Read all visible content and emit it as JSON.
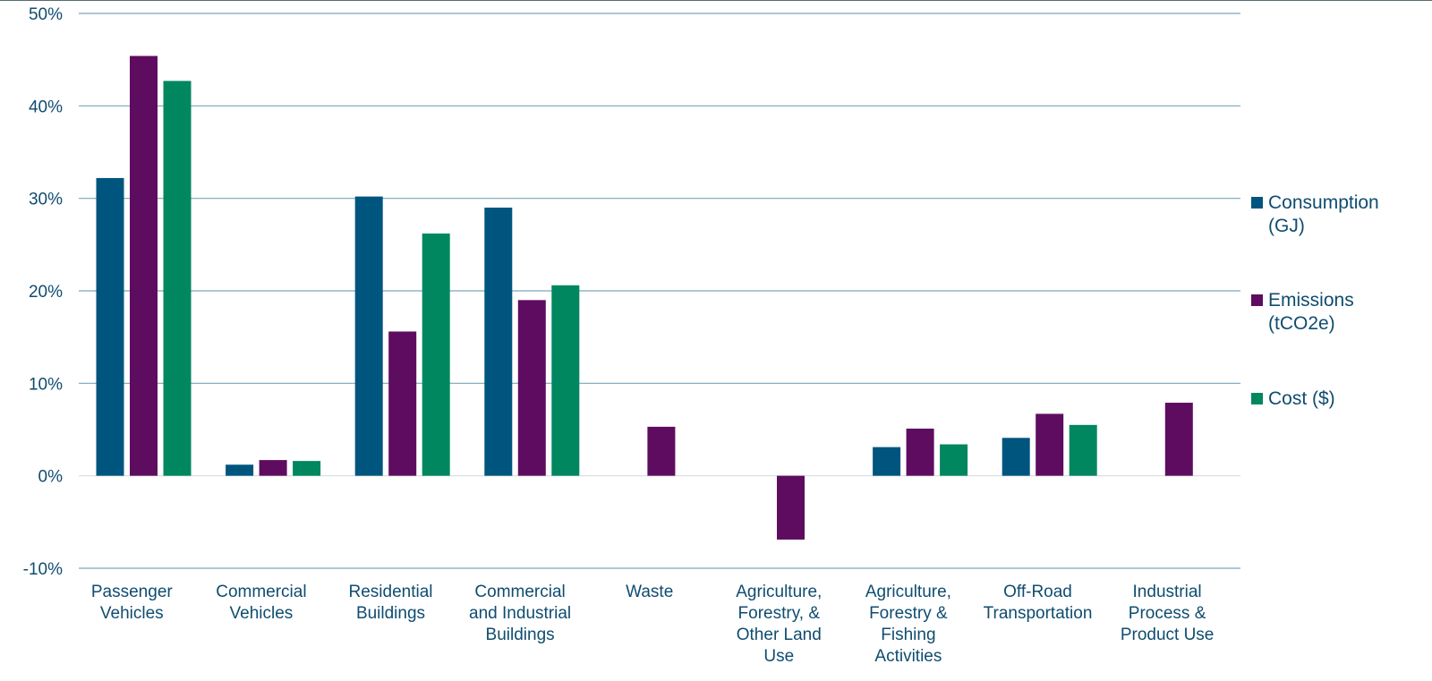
{
  "chart_data": {
    "type": "bar",
    "title": "",
    "xlabel": "",
    "ylabel": "",
    "ylim": [
      -10,
      50
    ],
    "y_ticks": [
      -10,
      0,
      10,
      20,
      30,
      40,
      50
    ],
    "y_tick_labels": [
      "-10%",
      "0%",
      "10%",
      "20%",
      "30%",
      "40%",
      "50%"
    ],
    "grid": true,
    "legend_position": "right",
    "categories": [
      [
        "Passenger",
        "Vehicles"
      ],
      [
        "Commercial",
        "Vehicles"
      ],
      [
        "Residential",
        "Buildings"
      ],
      [
        "Commercial",
        "and Industrial",
        "Buildings"
      ],
      [
        "Waste"
      ],
      [
        "Agriculture,",
        "Forestry, &",
        "Other Land",
        "Use"
      ],
      [
        "Agriculture,",
        "Forestry &",
        "Fishing",
        "Activities"
      ],
      [
        "Off-Road",
        "Transportation"
      ],
      [
        "Industrial",
        "Process &",
        "Product Use"
      ]
    ],
    "series": [
      {
        "name": [
          "Consumption",
          "(GJ)"
        ],
        "color": "#00557f",
        "values": [
          32.2,
          1.2,
          30.2,
          29.0,
          0,
          0,
          3.1,
          4.1,
          0
        ]
      },
      {
        "name": [
          "Emissions",
          "(tCO2e)"
        ],
        "color": "#5e0c60",
        "values": [
          45.4,
          1.7,
          15.6,
          19.0,
          5.3,
          -6.9,
          5.1,
          6.7,
          7.9
        ]
      },
      {
        "name": [
          "Cost ($)"
        ],
        "color": "#008760",
        "values": [
          42.7,
          1.6,
          26.2,
          20.6,
          0,
          0,
          3.4,
          5.5,
          0
        ]
      }
    ]
  }
}
